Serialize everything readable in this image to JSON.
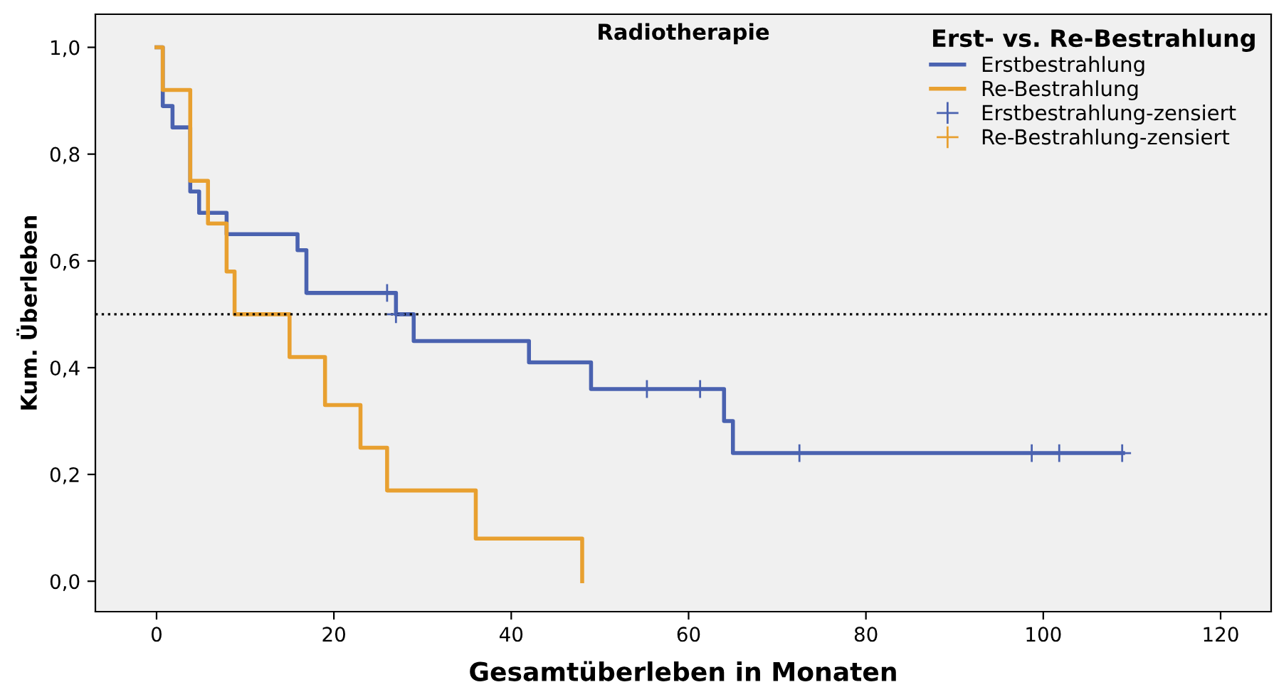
{
  "chart_data": {
    "type": "step",
    "title": "Radiotherapie",
    "xlabel": "Gesamtüberleben in Monaten",
    "ylabel": "Kum. Überleben",
    "legend_title": "Erst- vs. Re-Bestrahlung",
    "series": [
      {
        "name": "Erstbestrahlung",
        "color": "#4a62b0",
        "x": [
          0,
          0.7,
          1.8,
          3.8,
          4.8,
          7.9,
          15.9,
          16.9,
          27,
          29,
          42,
          49,
          64,
          65,
          109
        ],
        "values": [
          1,
          0.89,
          0.85,
          0.73,
          0.69,
          0.65,
          0.62,
          0.54,
          0.5,
          0.45,
          0.41,
          0.36,
          0.3,
          0.24,
          0.24
        ]
      },
      {
        "name": "Re-Bestrahlung",
        "color": "#e8a030",
        "x": [
          0,
          0.7,
          3.8,
          5.8,
          7.9,
          8.8,
          15,
          19,
          23,
          26,
          36,
          48
        ],
        "values": [
          1,
          0.92,
          0.75,
          0.67,
          0.58,
          0.5,
          0.42,
          0.33,
          0.25,
          0.17,
          0.08,
          0
        ]
      },
      {
        "name": "Erstbestrahlung-zensiert",
        "type": "scatter",
        "marker": "cross",
        "color": "#4a62b0",
        "x": [
          26,
          27,
          55.3,
          61.3,
          72.5,
          98.7,
          101.8,
          108.9
        ],
        "values": [
          0.54,
          0.5,
          0.36,
          0.36,
          0.24,
          0.24,
          0.24,
          0.24
        ]
      },
      {
        "name": "Re-Bestrahlung-zensiert",
        "type": "scatter",
        "marker": "cross",
        "color": "#e8a030"
      }
    ],
    "xlim": [
      -6.9,
      125.7
    ],
    "ylim": [
      -0.057,
      1.062
    ],
    "xticks": [
      0,
      20,
      40,
      60,
      80,
      100,
      120
    ],
    "yticks": [
      {
        "value": 0,
        "label": "0,0"
      },
      {
        "value": 0.2,
        "label": "0,2"
      },
      {
        "value": 0.4,
        "label": "0,4"
      },
      {
        "value": 0.6,
        "label": "0,6"
      },
      {
        "value": 0.8,
        "label": "0,8"
      },
      {
        "value": 1,
        "label": "1,0"
      }
    ],
    "ref_lines": [
      {
        "axis": "y",
        "value": 0.5,
        "color": "#000000",
        "line_style": "dotted"
      }
    ],
    "grid": false,
    "legend": "top right"
  }
}
